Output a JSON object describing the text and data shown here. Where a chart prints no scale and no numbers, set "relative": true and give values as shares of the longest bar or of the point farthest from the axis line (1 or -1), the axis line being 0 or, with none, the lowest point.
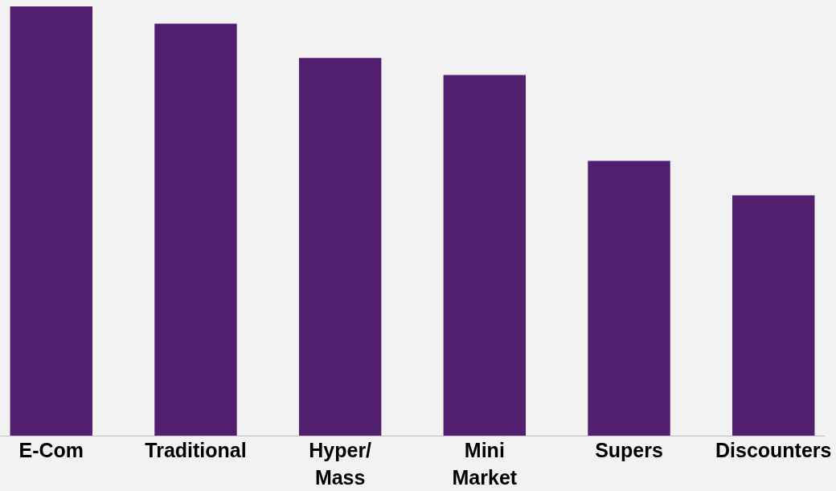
{
  "chart_data": {
    "type": "bar",
    "relative": true,
    "color": "#521f6e",
    "categories": [
      "E-Com",
      "Traditional",
      "Hyper/ Mass",
      "Mini Market",
      "Supers",
      "Discounters"
    ],
    "values": [
      1,
      0.96,
      0.88,
      0.84,
      0.64,
      0.56
    ],
    "grid": false
  }
}
